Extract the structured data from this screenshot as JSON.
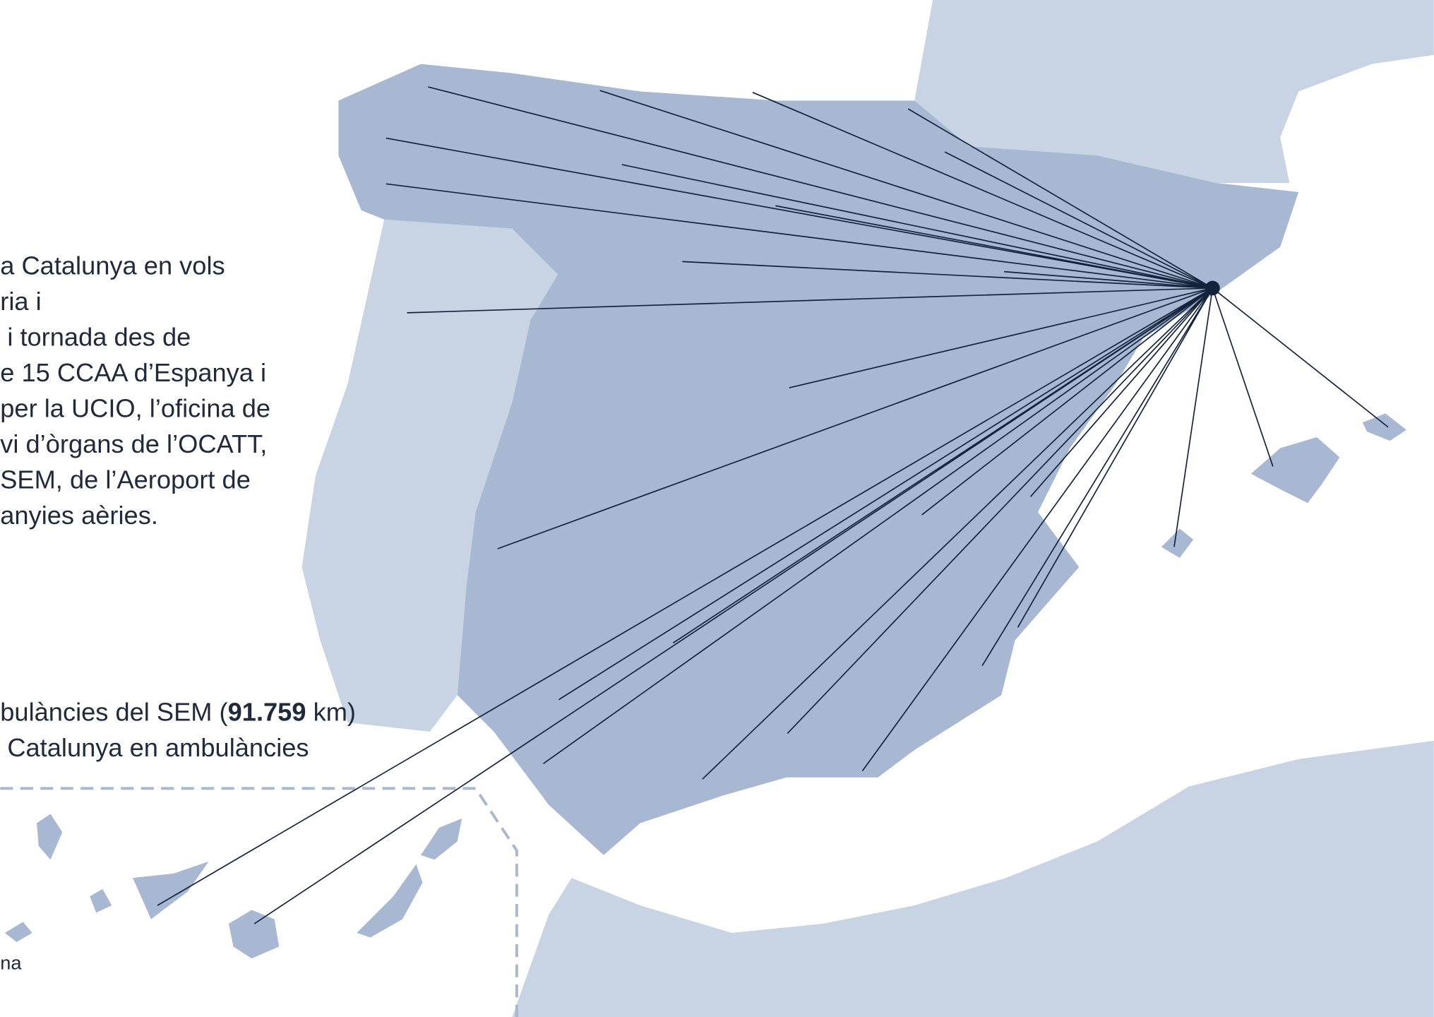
{
  "text_block": {
    "lines": [
      "a Catalunya en vols",
      "ria i",
      " i tornada des de",
      "e 15 CCAA d’Espanya i",
      "per la UCIO, l’oficina de",
      "vi d’òrgans de l’OCATT,",
      "SEM, de l’Aeroport de",
      "anyies aèries."
    ]
  },
  "ambulance_note": {
    "line1": {
      "before": "bulàncies del SEM (",
      "bold": "91.759",
      "after": " km)"
    },
    "line2": " Catalunya en ambulàncies"
  },
  "inset_label": "na"
}
